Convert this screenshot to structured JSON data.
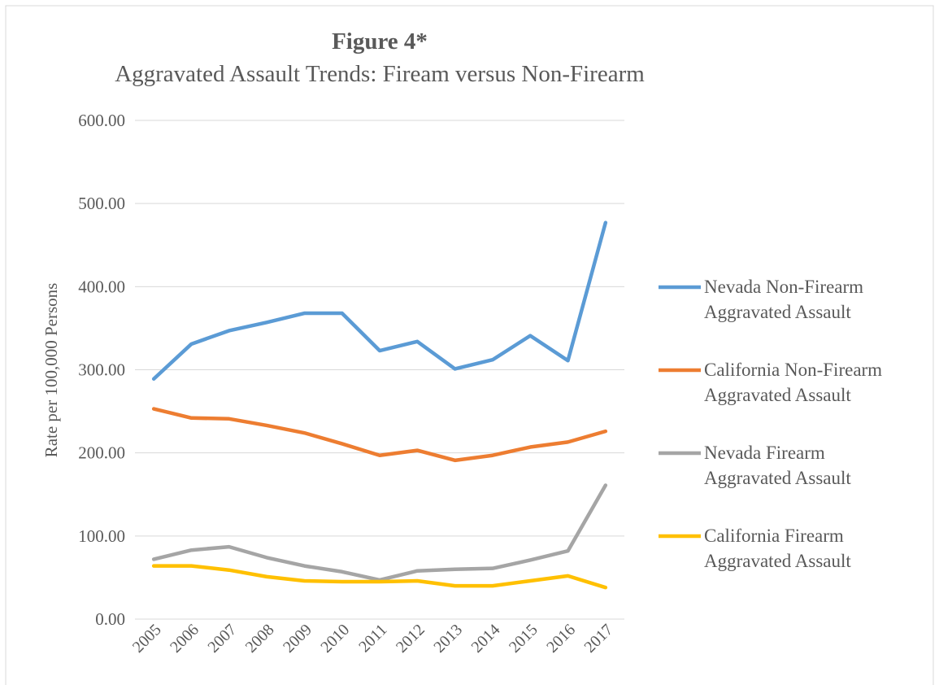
{
  "chart_data": {
    "type": "line",
    "title": "Figure 4*",
    "subtitle": "Aggravated Assault Trends: Fiream versus Non-Firearm",
    "y_label": "Rate per 100,000 Persons",
    "categories": [
      "2005",
      "2006",
      "2007",
      "2008",
      "2009",
      "2010",
      "2011",
      "2012",
      "2013",
      "2014",
      "2015",
      "2016",
      "2017"
    ],
    "series": [
      {
        "name": "Nevada Non-Firearm Aggravated Assault",
        "color": "#5b9bd5",
        "values": [
          289,
          331,
          347,
          357,
          368,
          368,
          323,
          334,
          301,
          312,
          341,
          311,
          477
        ]
      },
      {
        "name": "California Non-Firearm Aggravated Assault",
        "color": "#ed7d31",
        "values": [
          253,
          242,
          241,
          233,
          224,
          211,
          197,
          203,
          191,
          197,
          207,
          213,
          226
        ]
      },
      {
        "name": "Nevada Firearm Aggravated Assault",
        "color": "#a5a5a5",
        "values": [
          72,
          83,
          87,
          74,
          64,
          57,
          47,
          58,
          60,
          61,
          71,
          82,
          161
        ]
      },
      {
        "name": "California Firearm Aggravated Assault",
        "color": "#ffc000",
        "values": [
          64,
          64,
          59,
          51,
          46,
          45,
          45,
          46,
          40,
          40,
          46,
          52,
          38
        ]
      }
    ],
    "ylim": [
      0,
      600
    ],
    "yticks": [
      {
        "value": 0,
        "label": "0.00"
      },
      {
        "value": 100,
        "label": "100.00"
      },
      {
        "value": 200,
        "label": "200.00"
      },
      {
        "value": 300,
        "label": "300.00"
      },
      {
        "value": 400,
        "label": "400.00"
      },
      {
        "value": 500,
        "label": "500.00"
      },
      {
        "value": 600,
        "label": "600.00"
      }
    ],
    "grid": true,
    "legend": "right"
  }
}
